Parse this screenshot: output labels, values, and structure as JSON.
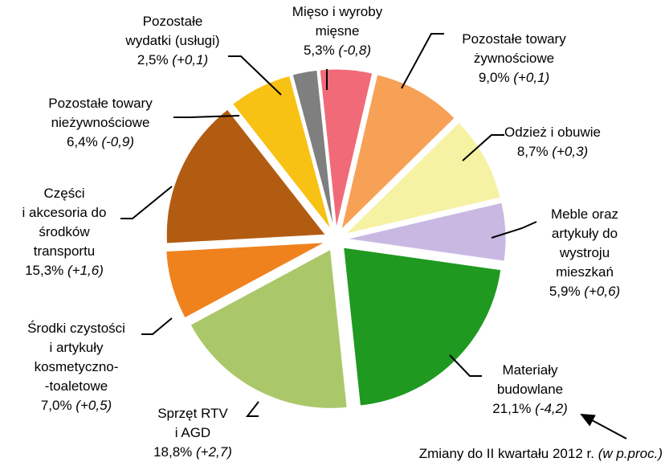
{
  "chart_data": {
    "type": "pie",
    "categories": [
      [
        "Mięso i wyroby",
        "mięsne"
      ],
      [
        "Pozostałe towary",
        "żywnościowe"
      ],
      [
        "Odzież i obuwie"
      ],
      [
        "Meble oraz",
        "artykuły do",
        "wystroju",
        "mieszkań"
      ],
      [
        "Materiały",
        "budowlane"
      ],
      [
        "Sprzęt RTV",
        "i AGD"
      ],
      [
        "Środki czystości",
        "i artykuły",
        "kosmetyczno-",
        "-toaletowe"
      ],
      [
        "Części",
        "i akcesoria do",
        "środków",
        "transportu"
      ],
      [
        "Pozostałe towary",
        "nieżywnościowe"
      ],
      [
        "Pozostałe",
        "wydatki (usługi)"
      ]
    ],
    "values": [
      5.3,
      9.0,
      8.7,
      5.9,
      21.1,
      18.8,
      7.0,
      15.3,
      6.4,
      2.5
    ],
    "value_labels": [
      "5,3%",
      "9,0%",
      "8,7%",
      "5,9%",
      "21,1%",
      "18,8%",
      "7,0%",
      "15,3%",
      "6,4%",
      "2,5%"
    ],
    "change_labels": [
      "(-0,8)",
      "(+0,1)",
      "(+0,3)",
      "(+0,6)",
      "(-4,2)",
      "(+2,7)",
      "(+0,5)",
      "(+1,6)",
      "(-0,9)",
      "(+0,1)"
    ],
    "colors": [
      "#f06a78",
      "#f7a156",
      "#f6f2a4",
      "#c9b9e2",
      "#1f991f",
      "#aac86a",
      "#f0821e",
      "#b25c12",
      "#f8c214",
      "#7f7f7f"
    ],
    "note": "Zmiany do II kwartału 2012 r.",
    "note_unit": "(w p.proc.)"
  }
}
